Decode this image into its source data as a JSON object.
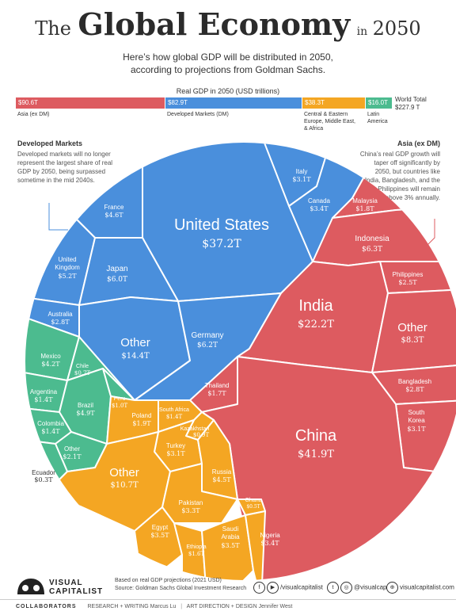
{
  "header": {
    "title_pre": "The",
    "title_main": "Global Economy",
    "title_in": "in",
    "title_year": "2050",
    "subtitle_line1": "Here’s how global GDP will be distributed in 2050,",
    "subtitle_line2": "according to projections from Goldman Sachs."
  },
  "summary_bar": {
    "title": "Real GDP in 2050 (USD trillions)",
    "segments": [
      {
        "value_label": "$90.6T",
        "label": "Asia (ex DM)",
        "value": 90.6,
        "color": "#dd5b60"
      },
      {
        "value_label": "$82.9T",
        "label": "Developed Markets (DM)",
        "value": 82.9,
        "color": "#4a8fdc"
      },
      {
        "value_label": "$38.3T",
        "label_lines": [
          "Central & Eastern",
          "Europe, Middle East,",
          "& Africa"
        ],
        "value": 38.3,
        "color": "#f4a623"
      },
      {
        "value_label": "$16.0T",
        "label_lines": [
          "Latin",
          "America"
        ],
        "value": 16.0,
        "color": "#4cbb8f"
      }
    ],
    "world_label": "World Total",
    "world_value": "$227.9 T"
  },
  "notes": {
    "dm_title": "Developed Markets",
    "dm_lines": [
      "Developed markets will no longer",
      "represent the largest share of real",
      "GDP by 2050, being surpassed",
      "sometime in the mid 2040s."
    ],
    "asia_title": "Asia (ex DM)",
    "asia_lines": [
      "China’s real GDP growth will",
      "taper off significantly by",
      "2050, but countries like",
      "India, Bangladesh, and the",
      "Philippines will remain",
      "above 3% annually."
    ]
  },
  "chart_data": {
    "type": "voronoi treemap",
    "units": "USD trillions",
    "groups": [
      {
        "name": "Developed Markets (DM)",
        "color": "#4a8fdc",
        "items": [
          {
            "name": "United States",
            "value": 37.2,
            "label": "$37.2T"
          },
          {
            "name": "Other",
            "value": 14.4,
            "label": "$14.4T"
          },
          {
            "name": "Germany",
            "value": 6.2,
            "label": "$6.2T"
          },
          {
            "name": "Japan",
            "value": 6.0,
            "label": "$6.0T"
          },
          {
            "name": "United Kingdom",
            "value": 5.2,
            "label": "$5.2T"
          },
          {
            "name": "France",
            "value": 4.6,
            "label": "$4.6T"
          },
          {
            "name": "Canada",
            "value": 3.4,
            "label": "$3.4T"
          },
          {
            "name": "Italy",
            "value": 3.1,
            "label": "$3.1T"
          },
          {
            "name": "Australia",
            "value": 2.8,
            "label": "$2.8T"
          }
        ]
      },
      {
        "name": "Asia (ex DM)",
        "color": "#dd5b60",
        "items": [
          {
            "name": "China",
            "value": 41.9,
            "label": "$41.9T"
          },
          {
            "name": "India",
            "value": 22.2,
            "label": "$22.2T"
          },
          {
            "name": "Other",
            "value": 8.3,
            "label": "$8.3T"
          },
          {
            "name": "Indonesia",
            "value": 6.3,
            "label": "$6.3T"
          },
          {
            "name": "South Korea",
            "value": 3.1,
            "label": "$3.1T"
          },
          {
            "name": "Bangladesh",
            "value": 2.8,
            "label": "$2.8T"
          },
          {
            "name": "Philippines",
            "value": 2.5,
            "label": "$2.5T"
          },
          {
            "name": "Malaysia",
            "value": 1.8,
            "label": "$1.8T"
          },
          {
            "name": "Thailand",
            "value": 1.7,
            "label": "$1.7T"
          }
        ]
      },
      {
        "name": "Central & Eastern Europe, Middle East, & Africa",
        "color": "#f4a623",
        "items": [
          {
            "name": "Other",
            "value": 10.7,
            "label": "$10.7T"
          },
          {
            "name": "Russia",
            "value": 4.5,
            "label": "$4.5T"
          },
          {
            "name": "Egypt",
            "value": 3.5,
            "label": "$3.5T"
          },
          {
            "name": "Saudi Arabia",
            "value": 3.5,
            "label": "$3.5T"
          },
          {
            "name": "Nigeria",
            "value": 3.4,
            "label": "$3.4T"
          },
          {
            "name": "Pakistan",
            "value": 3.3,
            "label": "$3.3T"
          },
          {
            "name": "Turkey",
            "value": 3.1,
            "label": "$3.1T"
          },
          {
            "name": "Poland",
            "value": 1.9,
            "label": "$1.9T"
          },
          {
            "name": "Ethiopia",
            "value": 1.6,
            "label": "$1.6T"
          },
          {
            "name": "South Africa",
            "value": 1.4,
            "label": "$1.4T"
          },
          {
            "name": "Kazakhstan",
            "value": 0.9,
            "label": "$0.9T"
          },
          {
            "name": "Ghana",
            "value": 0.5,
            "label": "$0.5T"
          }
        ]
      },
      {
        "name": "Latin America",
        "color": "#4cbb8f",
        "items": [
          {
            "name": "Brazil",
            "value": 4.9,
            "label": "$4.9T"
          },
          {
            "name": "Mexico",
            "value": 4.2,
            "label": "$4.2T"
          },
          {
            "name": "Other",
            "value": 2.1,
            "label": "$2.1T"
          },
          {
            "name": "Argentina",
            "value": 1.4,
            "label": "$1.4T"
          },
          {
            "name": "Colombia",
            "value": 1.4,
            "label": "$1.4T"
          },
          {
            "name": "Peru",
            "value": 1.0,
            "label": "$1.0T"
          },
          {
            "name": "Chile",
            "value": 0.7,
            "label": "$0.7T"
          },
          {
            "name": "Ecuador",
            "value": 0.3,
            "label": "$0.3T"
          }
        ]
      }
    ]
  },
  "footer": {
    "source_line1": "Based on real GDP projections (2021 USD)",
    "source_line2": "Source: Goldman Sachs Global Investment Research",
    "logo_line1": "VISUAL",
    "logo_line2": "CAPITALIST",
    "social1": "/visualcapitalist",
    "social2": "@visualcap",
    "website": "visualcapitalist.com",
    "collaborators": "COLLABORATORS",
    "research": "RESEARCH + WRITING",
    "research_name": "Marcus Lu",
    "art": "ART DIRECTION + DESIGN",
    "art_name": "Jennifer West"
  }
}
